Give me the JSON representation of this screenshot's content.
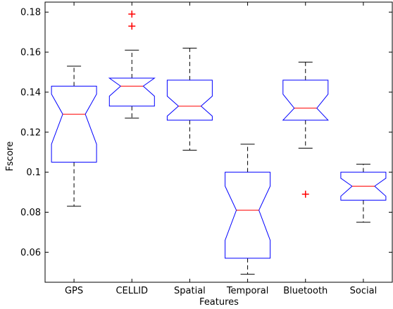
{
  "chart_data": {
    "type": "boxplot",
    "notched": true,
    "xlabel": "Features",
    "ylabel": "Fscore",
    "ylim": [
      0.045,
      0.185
    ],
    "yticks": [
      0.06,
      0.08,
      0.1,
      0.12,
      0.14,
      0.16,
      0.18
    ],
    "ytick_labels": [
      "0.06",
      "0.08",
      "0.1",
      "0.12",
      "0.14",
      "0.16",
      "0.18"
    ],
    "categories": [
      "GPS",
      "CELLID",
      "Spatial",
      "Temporal",
      "Bluetooth",
      "Social"
    ],
    "boxes": [
      {
        "category": "GPS",
        "whisker_low": 0.083,
        "q1": 0.105,
        "notch_low": 0.114,
        "median": 0.129,
        "notch_high": 0.139,
        "q3": 0.143,
        "whisker_high": 0.153,
        "outliers": []
      },
      {
        "category": "CELLID",
        "whisker_low": 0.127,
        "q1": 0.133,
        "notch_low": 0.138,
        "median": 0.143,
        "notch_high": 0.147,
        "q3": 0.147,
        "whisker_high": 0.161,
        "outliers": [
          0.173,
          0.179
        ]
      },
      {
        "category": "Spatial",
        "whisker_low": 0.111,
        "q1": 0.126,
        "notch_low": 0.128,
        "median": 0.133,
        "notch_high": 0.138,
        "q3": 0.146,
        "whisker_high": 0.162,
        "outliers": []
      },
      {
        "category": "Temporal",
        "whisker_low": 0.049,
        "q1": 0.057,
        "notch_low": 0.066,
        "median": 0.081,
        "notch_high": 0.093,
        "q3": 0.1,
        "whisker_high": 0.114,
        "outliers": []
      },
      {
        "category": "Bluetooth",
        "whisker_low": 0.112,
        "q1": 0.126,
        "notch_low": 0.126,
        "median": 0.132,
        "notch_high": 0.139,
        "q3": 0.146,
        "whisker_high": 0.155,
        "outliers": [
          0.089
        ]
      },
      {
        "category": "Social",
        "whisker_low": 0.075,
        "q1": 0.086,
        "notch_low": 0.088,
        "median": 0.093,
        "notch_high": 0.097,
        "q3": 0.1,
        "whisker_high": 0.104,
        "outliers": []
      }
    ],
    "colors": {
      "box": "#0000ff",
      "median": "#ff0000",
      "whisker": "#000000",
      "outlier": "#ff0000"
    },
    "grid": false
  }
}
